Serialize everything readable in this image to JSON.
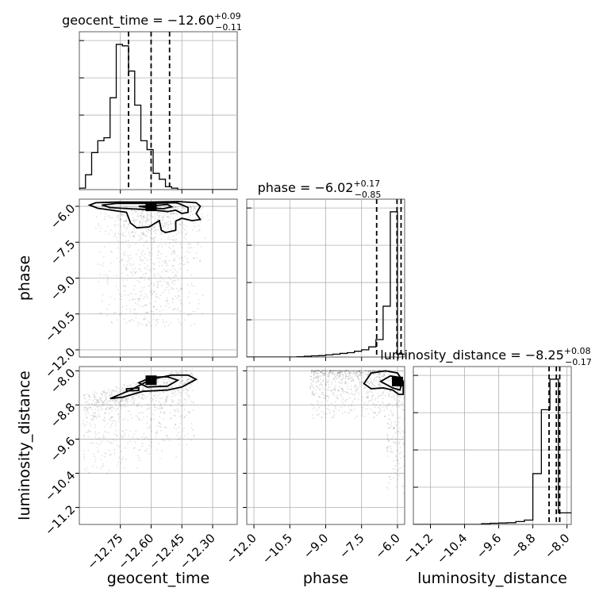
{
  "chart_data": {
    "type": "corner",
    "parameters": [
      {
        "name": "geocent_time",
        "xlabel": "geocent_time",
        "ylabel": "",
        "title": "geocent_time = −12.60",
        "title_sup": "+0.09",
        "title_sub": "−0.11",
        "range": [
          -12.95,
          -12.18
        ],
        "ticks": [
          -12.75,
          -12.6,
          -12.45,
          -12.3
        ],
        "tick_labels": [
          "−12.75",
          "−12.60",
          "−12.45",
          "−12.30"
        ],
        "median": -12.6,
        "quantiles": [
          -12.71,
          -12.6,
          -12.51
        ],
        "hist": {
          "edges_start": -12.95,
          "bin_width": 0.03,
          "counts": [
            0.01,
            0.1,
            0.25,
            0.33,
            0.35,
            0.62,
            0.98,
            0.97,
            0.8,
            0.57,
            0.33,
            0.27,
            0.11,
            0.07,
            0.02,
            0.01,
            0,
            0,
            0,
            0,
            0,
            0,
            0,
            0,
            0,
            0
          ]
        }
      },
      {
        "name": "phase",
        "xlabel": "phase",
        "ylabel": "phase",
        "title": "phase = −6.02",
        "title_sup": "+0.17",
        "title_sub": "−0.85",
        "range": [
          -12.3,
          -5.7
        ],
        "ticks": [
          -12.0,
          -10.5,
          -9.0,
          -7.5,
          -6.0
        ],
        "tick_labels": [
          "−12.0",
          "−10.5",
          "−9.0",
          "−7.5",
          "−6.0"
        ],
        "median": -6.02,
        "quantiles": [
          -6.87,
          -6.02,
          -5.85
        ],
        "hist": {
          "edges_start": -12.3,
          "bin_width": 0.3,
          "counts": [
            0,
            0,
            0,
            0,
            0,
            0,
            0,
            0.002,
            0.005,
            0.008,
            0.01,
            0.015,
            0.02,
            0.025,
            0.03,
            0.04,
            0.05,
            0.07,
            0.12,
            0.35,
            1.0,
            0.02
          ]
        }
      },
      {
        "name": "luminosity_distance",
        "xlabel": "luminosity_distance",
        "ylabel": "luminosity_distance",
        "title": "luminosity_distance = −8.25",
        "title_sup": "+0.08",
        "title_sub": "−0.17",
        "range": [
          -11.6,
          -7.9
        ],
        "ticks": [
          -11.2,
          -10.4,
          -9.6,
          -8.8,
          -8.0
        ],
        "tick_labels": [
          "−11.2",
          "−10.4",
          "−9.6",
          "−8.8",
          "−8.0"
        ],
        "median": -8.25,
        "quantiles": [
          -8.42,
          -8.25,
          -8.17
        ],
        "hist": {
          "edges_start": -11.6,
          "bin_width": 0.2,
          "counts": [
            0,
            0,
            0,
            0,
            0,
            0,
            0,
            0,
            0.005,
            0.008,
            0.01,
            0.012,
            0.02,
            0.03,
            0.35,
            0.79,
            1.0,
            0.08,
            0.08
          ]
        }
      }
    ],
    "joint": [
      {
        "x": "geocent_time",
        "y": "phase",
        "center": [
          -12.6,
          -6.0
        ],
        "contours": [
          [
            [
              -12.47,
              -5.8
            ],
            [
              -12.6,
              -5.82
            ],
            [
              -12.76,
              -5.82
            ],
            [
              -12.87,
              -5.85
            ],
            [
              -12.9,
              -5.95
            ],
            [
              -12.86,
              -6.08
            ],
            [
              -12.8,
              -6.15
            ],
            [
              -12.72,
              -6.25
            ],
            [
              -12.7,
              -6.7
            ],
            [
              -12.67,
              -6.9
            ],
            [
              -12.61,
              -6.86
            ],
            [
              -12.56,
              -6.6
            ],
            [
              -12.55,
              -7.0
            ],
            [
              -12.53,
              -7.1
            ],
            [
              -12.48,
              -7.0
            ],
            [
              -12.48,
              -6.62
            ],
            [
              -12.45,
              -6.5
            ],
            [
              -12.4,
              -6.6
            ],
            [
              -12.36,
              -6.55
            ],
            [
              -12.38,
              -6.3
            ],
            [
              -12.36,
              -6.0
            ],
            [
              -12.38,
              -5.85
            ]
          ],
          [
            [
              -12.48,
              -5.85
            ],
            [
              -12.62,
              -5.88
            ],
            [
              -12.77,
              -5.88
            ],
            [
              -12.84,
              -5.95
            ],
            [
              -12.8,
              -6.05
            ],
            [
              -12.7,
              -6.1
            ],
            [
              -12.59,
              -6.15
            ],
            [
              -12.52,
              -6.22
            ],
            [
              -12.48,
              -6.16
            ],
            [
              -12.45,
              -6.3
            ],
            [
              -12.42,
              -6.25
            ],
            [
              -12.42,
              -6.05
            ],
            [
              -12.46,
              -5.9
            ]
          ],
          [
            [
              -12.52,
              -5.92
            ],
            [
              -12.6,
              -5.98
            ],
            [
              -12.66,
              -6.0
            ],
            [
              -12.62,
              -6.05
            ],
            [
              -12.54,
              -6.1
            ],
            [
              -12.5,
              -6.02
            ]
          ]
        ]
      },
      {
        "x": "geocent_time",
        "y": "luminosity_distance",
        "center": [
          -12.6,
          -8.22
        ],
        "contours": [
          [
            [
              -12.8,
              -8.65
            ],
            [
              -12.7,
              -8.45
            ],
            [
              -12.6,
              -8.2
            ],
            [
              -12.5,
              -8.1
            ],
            [
              -12.42,
              -8.1
            ],
            [
              -12.38,
              -8.2
            ],
            [
              -12.45,
              -8.38
            ],
            [
              -12.52,
              -8.45
            ],
            [
              -12.64,
              -8.48
            ],
            [
              -12.74,
              -8.62
            ]
          ],
          [
            [
              -12.66,
              -8.28
            ],
            [
              -12.6,
              -8.15
            ],
            [
              -12.52,
              -8.14
            ],
            [
              -12.47,
              -8.22
            ],
            [
              -12.52,
              -8.36
            ],
            [
              -12.62,
              -8.38
            ]
          ],
          [
            [
              -12.72,
              -8.42
            ],
            [
              -12.66,
              -8.4
            ],
            [
              -12.66,
              -8.46
            ],
            [
              -12.72,
              -8.47
            ]
          ]
        ]
      },
      {
        "x": "phase",
        "y": "luminosity_distance",
        "center": [
          -6.0,
          -8.25
        ],
        "contours": [
          [
            [
              -7.4,
              -8.3
            ],
            [
              -7.1,
              -8.05
            ],
            [
              -6.5,
              -8.0
            ],
            [
              -6.0,
              -8.05
            ],
            [
              -5.76,
              -8.25
            ],
            [
              -5.76,
              -8.55
            ],
            [
              -5.95,
              -8.55
            ],
            [
              -6.2,
              -8.45
            ],
            [
              -6.6,
              -8.4
            ],
            [
              -7.1,
              -8.42
            ]
          ],
          [
            [
              -6.7,
              -8.25
            ],
            [
              -6.3,
              -8.12
            ],
            [
              -5.95,
              -8.15
            ],
            [
              -5.82,
              -8.3
            ],
            [
              -5.9,
              -8.45
            ],
            [
              -6.2,
              -8.4
            ]
          ],
          [
            [
              -6.2,
              -8.2
            ],
            [
              -5.95,
              -8.2
            ],
            [
              -5.9,
              -8.35
            ],
            [
              -6.1,
              -8.33
            ]
          ]
        ]
      }
    ]
  }
}
